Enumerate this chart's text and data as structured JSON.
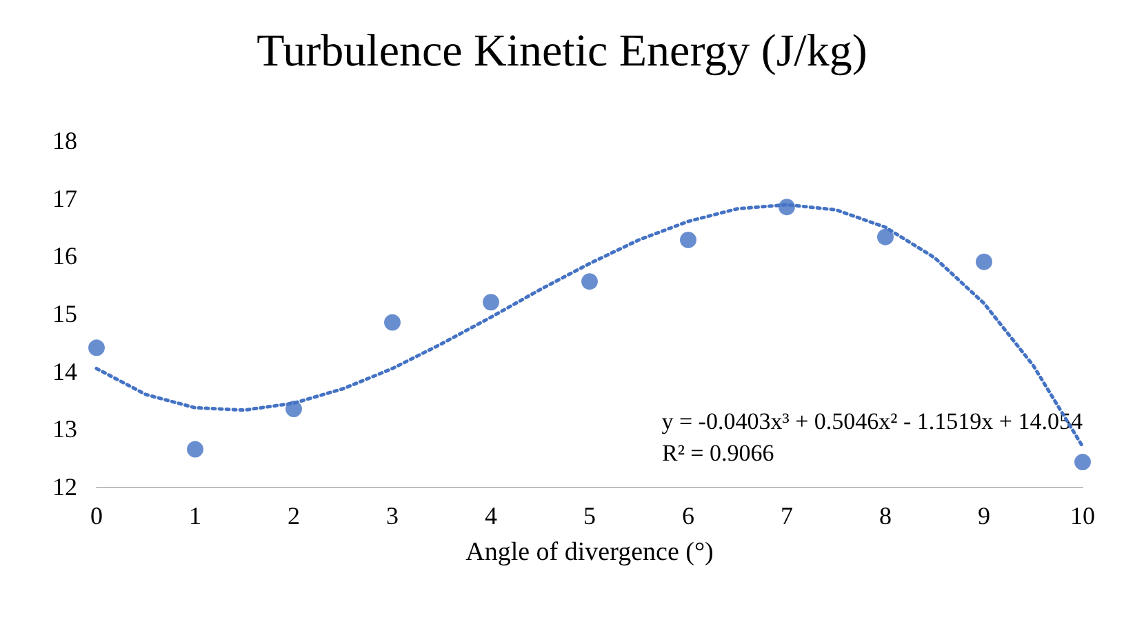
{
  "chart_data": {
    "type": "scatter",
    "title": "Turbulence Kinetic Energy (J/kg)",
    "xlabel": "Angle of divergence (°)",
    "x": [
      0,
      1,
      2,
      3,
      4,
      5,
      6,
      7,
      8,
      9,
      10
    ],
    "series": [
      {
        "color": "#4472c4",
        "marker": "circle",
        "values": [
          14.41,
          12.65,
          13.35,
          14.85,
          15.2,
          15.56,
          16.28,
          16.85,
          16.33,
          15.9,
          12.43
        ]
      },
      {
        "type": "line",
        "color": "#4472c4",
        "marker": "none",
        "line_style": "dotted",
        "x": [
          0,
          0.5,
          1,
          1.5,
          2,
          2.5,
          3,
          3.5,
          4,
          4.5,
          5,
          5.5,
          6,
          6.5,
          7,
          7.5,
          8,
          8.5,
          9,
          9.5,
          10
        ],
        "values": [
          14.05,
          13.6,
          13.37,
          13.33,
          13.45,
          13.7,
          14.05,
          14.48,
          14.94,
          15.42,
          15.87,
          16.28,
          16.6,
          16.82,
          16.89,
          16.8,
          16.5,
          15.97,
          15.18,
          14.1,
          12.7
        ]
      }
    ],
    "xlim": [
      0,
      10
    ],
    "xticks": [
      0,
      1,
      2,
      3,
      4,
      5,
      6,
      7,
      8,
      9,
      10
    ],
    "ylim": [
      12,
      18
    ],
    "yticks": [
      12,
      13,
      14,
      15,
      16,
      17,
      18
    ],
    "grid": false,
    "annotations": [
      "y = -0.0403x³ + 0.5046x² - 1.1519x + 14.054",
      "R² = 0.9066"
    ]
  }
}
